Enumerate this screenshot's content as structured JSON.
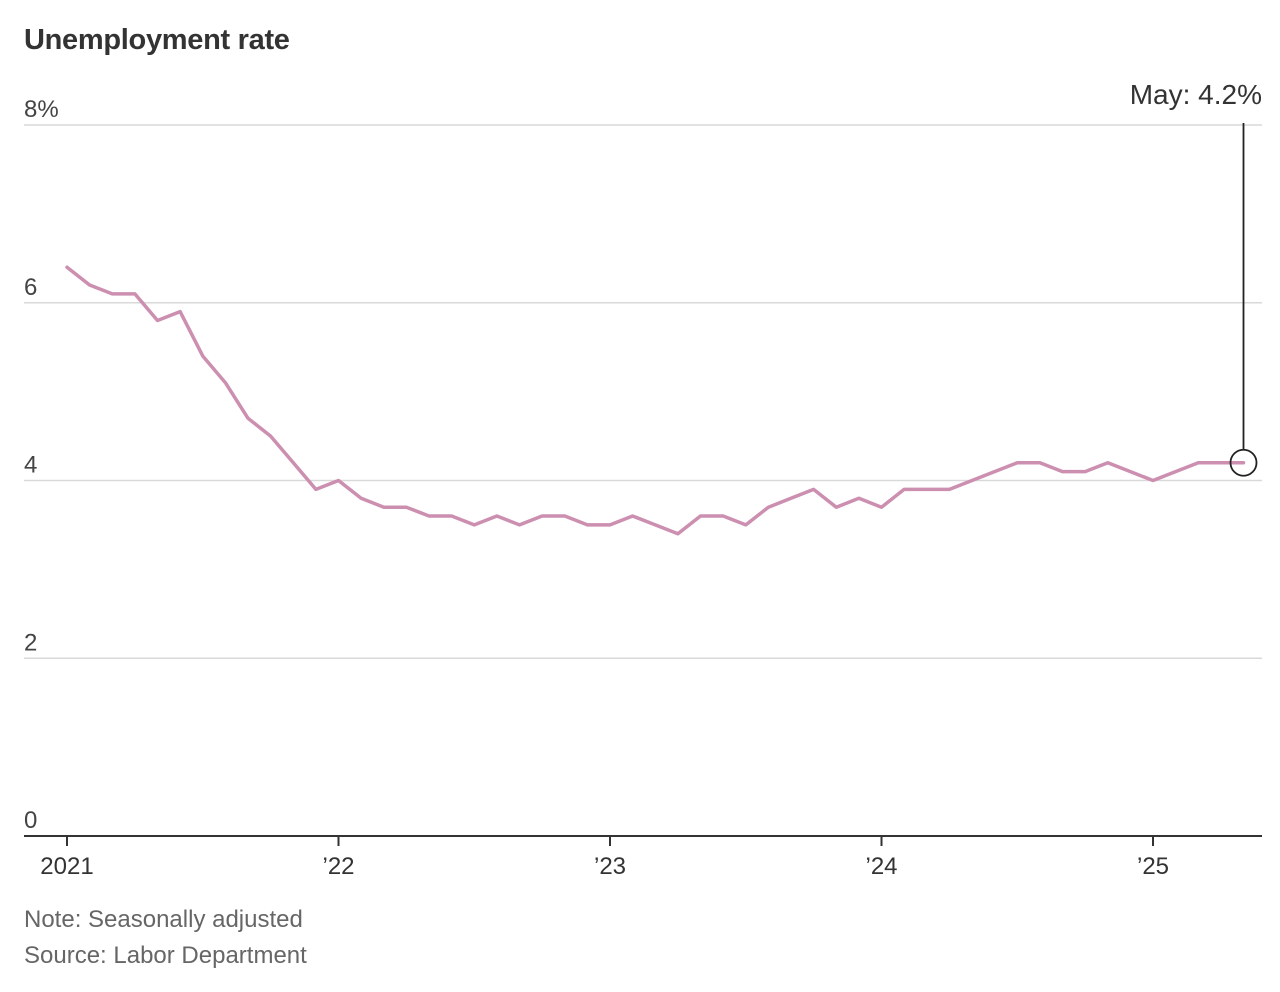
{
  "chart_data": {
    "type": "line",
    "title": "Unemployment rate",
    "y_ticks": [
      "8%",
      "6",
      "4",
      "2",
      "0"
    ],
    "y_tick_values": [
      8,
      6,
      4,
      2,
      0
    ],
    "ylim": [
      0,
      8
    ],
    "x_ticks": [
      "2021",
      "’22",
      "’23",
      "’24",
      "’25"
    ],
    "x_tick_dates": [
      "2021-01",
      "2022-01",
      "2023-01",
      "2024-01",
      "2025-01"
    ],
    "grid": true,
    "line_color": "#cc8fb0",
    "series": [
      {
        "dates": [
          "2021-01",
          "2021-02",
          "2021-03",
          "2021-04",
          "2021-05",
          "2021-06",
          "2021-07",
          "2021-08",
          "2021-09",
          "2021-10",
          "2021-11",
          "2021-12",
          "2022-01",
          "2022-02",
          "2022-03",
          "2022-04",
          "2022-05",
          "2022-06",
          "2022-07",
          "2022-08",
          "2022-09",
          "2022-10",
          "2022-11",
          "2022-12",
          "2023-01",
          "2023-02",
          "2023-03",
          "2023-04",
          "2023-05",
          "2023-06",
          "2023-07",
          "2023-08",
          "2023-09",
          "2023-10",
          "2023-11",
          "2023-12",
          "2024-01",
          "2024-02",
          "2024-03",
          "2024-04",
          "2024-05",
          "2024-06",
          "2024-07",
          "2024-08",
          "2024-09",
          "2024-10",
          "2024-11",
          "2024-12",
          "2025-01",
          "2025-02",
          "2025-03",
          "2025-04",
          "2025-05"
        ],
        "values": [
          6.4,
          6.2,
          6.1,
          6.1,
          5.8,
          5.9,
          5.4,
          5.1,
          4.7,
          4.5,
          4.2,
          3.9,
          4.0,
          3.8,
          3.7,
          3.7,
          3.6,
          3.6,
          3.5,
          3.6,
          3.5,
          3.6,
          3.6,
          3.5,
          3.5,
          3.6,
          3.5,
          3.4,
          3.6,
          3.6,
          3.5,
          3.7,
          3.8,
          3.9,
          3.7,
          3.8,
          3.7,
          3.9,
          3.9,
          3.9,
          4.0,
          4.1,
          4.2,
          4.2,
          4.1,
          4.1,
          4.2,
          4.1,
          4.0,
          4.1,
          4.2,
          4.2,
          4.2
        ]
      }
    ],
    "annotation": {
      "label": "May: 4.2%",
      "date": "2025-05",
      "value": 4.2
    },
    "note": "Note: Seasonally adjusted",
    "source": "Source: Labor Department"
  }
}
